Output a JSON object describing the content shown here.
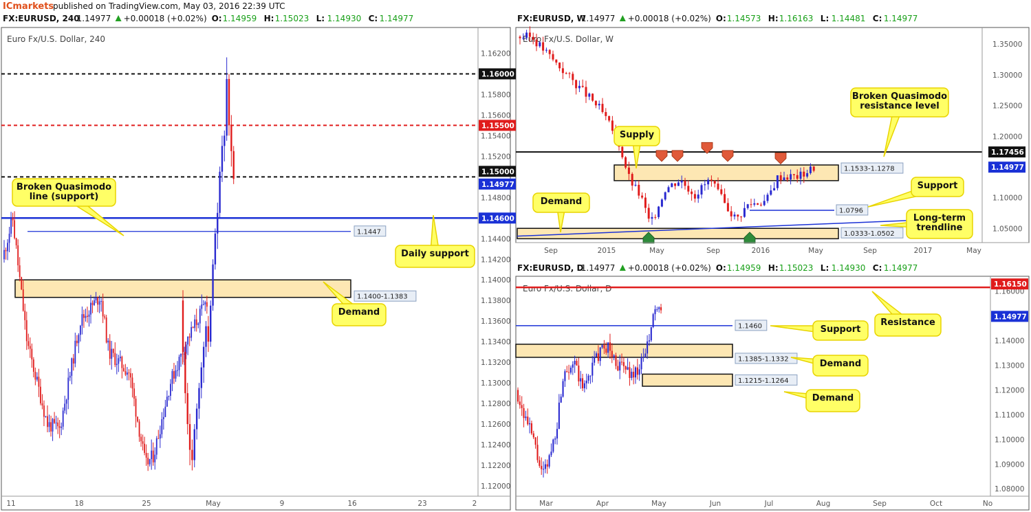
{
  "header": {
    "brand": "ICmarkets",
    "published": "published on TradingView.com, May 03, 2016 22:39 UTC"
  },
  "colors": {
    "up": "#2a2ad0",
    "down": "#e01c1c",
    "zone_fill": "#fde7b3",
    "callout_fill": "#ffff66",
    "callout_stroke": "#e8d400",
    "price_tag": "#1a31d6",
    "resistance": "#e01c1c"
  },
  "icons": [
    "up-triangle-icon",
    "down-arrow-marker-icon",
    "up-arrow-marker-icon"
  ],
  "chart_data": [
    {
      "id": "h4",
      "type": "candlestick",
      "symbol_line": {
        "symbol": "FX:EURUSD, 240",
        "price": "1.14977",
        "change": "+0.00018 (+0.02%)",
        "o": "1.14959",
        "h": "1.15023",
        "l": "1.14930",
        "c": "1.14977"
      },
      "title": "Euro Fx/U.S. Dollar, 240",
      "ylim": [
        1.119,
        1.1645
      ],
      "y_ticks": [
        "1.16200",
        "1.15800",
        "1.15600",
        "1.15400",
        "1.15200",
        "1.14800",
        "1.14400",
        "1.14200",
        "1.14000",
        "1.13800",
        "1.13600",
        "1.13400",
        "1.13200",
        "1.13000",
        "1.12800",
        "1.12600",
        "1.12400",
        "1.12200",
        "1.12000"
      ],
      "x_ticks": [
        "11",
        "18",
        "25",
        "May",
        "9",
        "16",
        "23",
        "2"
      ],
      "candles": [
        [
          1.142,
          1.144,
          1.138,
          1.1405
        ],
        [
          1.1405,
          1.146,
          1.1395,
          1.145
        ],
        [
          1.145,
          1.147,
          1.142,
          1.143
        ],
        [
          1.143,
          1.1475,
          1.141,
          1.147
        ],
        [
          1.147,
          1.148,
          1.14,
          1.142
        ],
        [
          1.142,
          1.143,
          1.137,
          1.138
        ],
        [
          1.138,
          1.14,
          1.134,
          1.135
        ],
        [
          1.135,
          1.136,
          1.13,
          1.132
        ],
        [
          1.132,
          1.133,
          1.128,
          1.13
        ],
        [
          1.13,
          1.131,
          1.126,
          1.128
        ],
        [
          1.128,
          1.13,
          1.124,
          1.1265
        ],
        [
          1.1265,
          1.129,
          1.1235,
          1.1285
        ],
        [
          1.1285,
          1.13,
          1.1255,
          1.127
        ],
        [
          1.127,
          1.129,
          1.125,
          1.1285
        ],
        [
          1.1285,
          1.132,
          1.1275,
          1.1315
        ],
        [
          1.1315,
          1.134,
          1.13,
          1.133
        ],
        [
          1.133,
          1.135,
          1.131,
          1.1345
        ],
        [
          1.1345,
          1.1375,
          1.1335,
          1.1365
        ],
        [
          1.1365,
          1.139,
          1.1355,
          1.138
        ],
        [
          1.138,
          1.1398,
          1.135,
          1.136
        ],
        [
          1.136,
          1.1375,
          1.134,
          1.137
        ],
        [
          1.137,
          1.1392,
          1.13,
          1.131
        ],
        [
          1.131,
          1.133,
          1.129,
          1.132
        ],
        [
          1.132,
          1.1398,
          1.13,
          1.138
        ],
        [
          1.138,
          1.139,
          1.132,
          1.133
        ],
        [
          1.133,
          1.134,
          1.128,
          1.129
        ],
        [
          1.129,
          1.13,
          1.125,
          1.126
        ],
        [
          1.126,
          1.127,
          1.122,
          1.1235
        ],
        [
          1.1235,
          1.1245,
          1.1215,
          1.1225
        ],
        [
          1.1225,
          1.126,
          1.1218,
          1.1255
        ],
        [
          1.1255,
          1.128,
          1.1245,
          1.1275
        ],
        [
          1.1275,
          1.13,
          1.1265,
          1.1295
        ],
        [
          1.1295,
          1.132,
          1.1285,
          1.1315
        ],
        [
          1.1315,
          1.134,
          1.13,
          1.1335
        ],
        [
          1.1335,
          1.136,
          1.1325,
          1.1355
        ],
        [
          1.1355,
          1.1365,
          1.133,
          1.134
        ],
        [
          1.134,
          1.138,
          1.1335,
          1.1375
        ],
        [
          1.1375,
          1.142,
          1.137,
          1.1415
        ],
        [
          1.1415,
          1.145,
          1.141,
          1.1445
        ],
        [
          1.1445,
          1.1475,
          1.143,
          1.1465
        ],
        [
          1.1465,
          1.151,
          1.146,
          1.1505
        ],
        [
          1.1505,
          1.154,
          1.1495,
          1.153
        ],
        [
          1.153,
          1.1545,
          1.1515,
          1.154
        ],
        [
          1.154,
          1.1616,
          1.1535,
          1.1595
        ],
        [
          1.1595,
          1.16,
          1.154,
          1.155
        ],
        [
          1.155,
          1.156,
          1.151,
          1.1525
        ],
        [
          1.1525,
          1.153,
          1.1493,
          1.1498
        ]
      ],
      "levels": [
        {
          "value": 1.16,
          "label": "1.16000",
          "style": "black-dash"
        },
        {
          "value": 1.155,
          "label": "1.15500",
          "style": "red-dash"
        },
        {
          "value": 1.15,
          "label": "1.15000",
          "style": "black-dash"
        },
        {
          "value": 1.146,
          "label": "1.14600",
          "style": "blue-solid"
        },
        {
          "value": 1.1447,
          "label": "1.1447",
          "style": "blue-thin"
        }
      ],
      "current_price": "1.14977",
      "zones": [
        {
          "label": "1.1400-1.1383",
          "top": 1.14,
          "bottom": 1.1383
        }
      ],
      "callouts": [
        "Broken Quasimodo line (support)",
        "Daily support",
        "Demand"
      ]
    },
    {
      "id": "weekly",
      "type": "candlestick",
      "symbol_line": {
        "symbol": "FX:EURUSD, W",
        "price": "1.14977",
        "change": "+0.00018 (+0.02%)",
        "o": "1.14573",
        "h": "1.16163",
        "l": "1.14481",
        "c": "1.14977"
      },
      "title": "Euro Fx/U.S. Dollar, W",
      "ylim": [
        1.027,
        1.377
      ],
      "y_ticks": [
        "1.35000",
        "1.30000",
        "1.25000",
        "1.20000",
        "1.10000",
        "1.05000"
      ],
      "x_ticks": [
        "Sep",
        "2015",
        "May",
        "Sep",
        "2016",
        "May",
        "Sep",
        "2017",
        "May"
      ],
      "levels": [
        {
          "value": 1.1745,
          "label": "1.17456",
          "style": "black-solid"
        },
        {
          "value": 1.0796,
          "label": "1.0796",
          "style": "blue-thin"
        }
      ],
      "current_price": "1.14977",
      "zones": [
        {
          "label": "1.1533-1.1278",
          "top": 1.1533,
          "bottom": 1.1278
        },
        {
          "label": "1.0333-1.0502",
          "top": 1.0502,
          "bottom": 1.0333
        }
      ],
      "callouts": [
        "Broken Quasimodo resistance level",
        "Supply",
        "Support",
        "Demand",
        "Long-term trendline"
      ]
    },
    {
      "id": "daily",
      "type": "candlestick",
      "symbol_line": {
        "symbol": "FX:EURUSD, D",
        "price": "1.14977",
        "change": "+0.00018 (+0.02%)",
        "o": "1.14959",
        "h": "1.15023",
        "l": "1.14930",
        "c": "1.14977"
      },
      "title": "Euro Fx/U.S. Dollar, D",
      "ylim": [
        1.077,
        1.166
      ],
      "y_ticks": [
        "1.16000",
        "1.14000",
        "1.13000",
        "1.12000",
        "1.11000",
        "1.10000",
        "1.09000",
        "1.08000"
      ],
      "x_ticks": [
        "Mar",
        "Apr",
        "May",
        "Jun",
        "Jul",
        "Aug",
        "Sep",
        "Oct",
        "No"
      ],
      "levels": [
        {
          "value": 1.1615,
          "label": "1.16150",
          "style": "red-solid"
        },
        {
          "value": 1.146,
          "label": "1.1460",
          "style": "blue-thin"
        }
      ],
      "current_price": "1.14977",
      "zones": [
        {
          "label": "1.1385-1.1332",
          "top": 1.1385,
          "bottom": 1.1332
        },
        {
          "label": "1.1215-1.1264",
          "top": 1.1264,
          "bottom": 1.1215
        }
      ],
      "callouts": [
        "Support",
        "Resistance",
        "Demand",
        "Demand"
      ]
    }
  ]
}
